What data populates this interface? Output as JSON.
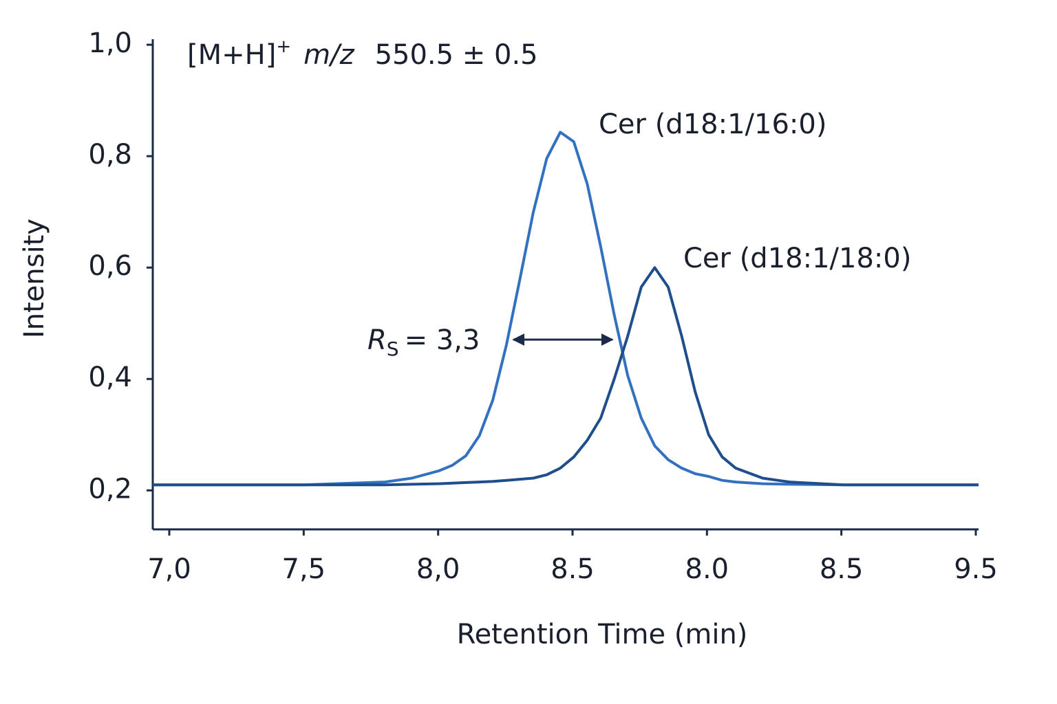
{
  "chart_data": {
    "type": "line",
    "ion": "[M+H]",
    "charge": "+",
    "mz_label": "m/z",
    "mz": "550.5 ± 0.5",
    "resolution_symbol": "R",
    "resolution_subscript": "S",
    "resolution_text": "= 3,3",
    "xlabel": "Retention Time (min)",
    "ylabel": "Intensity",
    "categories": [
      "7,0",
      "7,5",
      "8,0",
      "8.5",
      "8.0",
      "8.5",
      "9.5"
    ],
    "xlim": [
      6.94,
      10.0
    ],
    "ylim": [
      0.13,
      1.01
    ],
    "yticks": [
      {
        "value": 1.0,
        "label": "1,0"
      },
      {
        "value": 0.8,
        "label": "0,8"
      },
      {
        "value": 0.6,
        "label": "0,6"
      },
      {
        "value": 0.4,
        "label": "0,4"
      },
      {
        "value": 0.2,
        "label": "0,2"
      }
    ],
    "x": [
      6.94,
      7.5,
      7.8,
      7.9,
      8.0,
      8.05,
      8.1,
      8.15,
      8.2,
      8.25,
      8.3,
      8.35,
      8.4,
      8.45,
      8.5,
      8.55,
      8.6,
      8.65,
      8.7,
      8.75,
      8.8,
      8.85,
      8.9,
      8.95,
      9.0,
      9.05,
      9.1,
      9.2,
      9.3,
      9.5,
      10.0
    ],
    "series": [
      {
        "name": "Cer (d18:1/16:0)",
        "color": "#3271c0",
        "values": [
          0.21,
          0.21,
          0.215,
          0.222,
          0.235,
          0.245,
          0.262,
          0.298,
          0.362,
          0.46,
          0.578,
          0.699,
          0.796,
          0.843,
          0.826,
          0.75,
          0.637,
          0.515,
          0.406,
          0.33,
          0.28,
          0.255,
          0.24,
          0.23,
          0.225,
          0.218,
          0.215,
          0.212,
          0.211,
          0.21,
          0.21
        ]
      },
      {
        "name": "Cer (d18:1/18:0)",
        "color": "#1f4e8c",
        "values": [
          0.21,
          0.21,
          0.21,
          0.211,
          0.212,
          0.213,
          0.214,
          0.215,
          0.216,
          0.218,
          0.22,
          0.222,
          0.228,
          0.24,
          0.26,
          0.29,
          0.33,
          0.4,
          0.477,
          0.565,
          0.6,
          0.565,
          0.477,
          0.377,
          0.3,
          0.26,
          0.24,
          0.222,
          0.215,
          0.21,
          0.21
        ]
      }
    ]
  }
}
